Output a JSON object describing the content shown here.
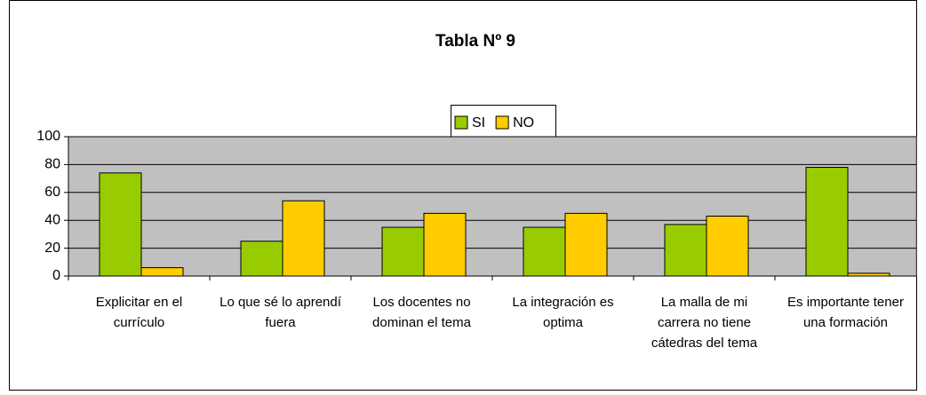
{
  "chart_data": {
    "type": "bar",
    "title": "Tabla Nº 9",
    "categories": [
      "Explicitar en el currículo",
      "Lo que sé lo aprendí fuera",
      "Los docentes no dominan el tema",
      "La integración es optima",
      "La malla de mi carrera no tiene cátedras del tema",
      "Es importante tener una formación"
    ],
    "series": [
      {
        "name": "SI",
        "color": "#99cc00",
        "values": [
          74,
          25,
          35,
          35,
          37,
          78
        ]
      },
      {
        "name": "NO",
        "color": "#ffcc00",
        "values": [
          6,
          54,
          45,
          45,
          43,
          2
        ]
      }
    ],
    "ylim": [
      0,
      100
    ],
    "yticks": [
      0,
      20,
      40,
      60,
      80,
      100
    ],
    "grid": true,
    "plot_background": "#c0c0c0"
  }
}
